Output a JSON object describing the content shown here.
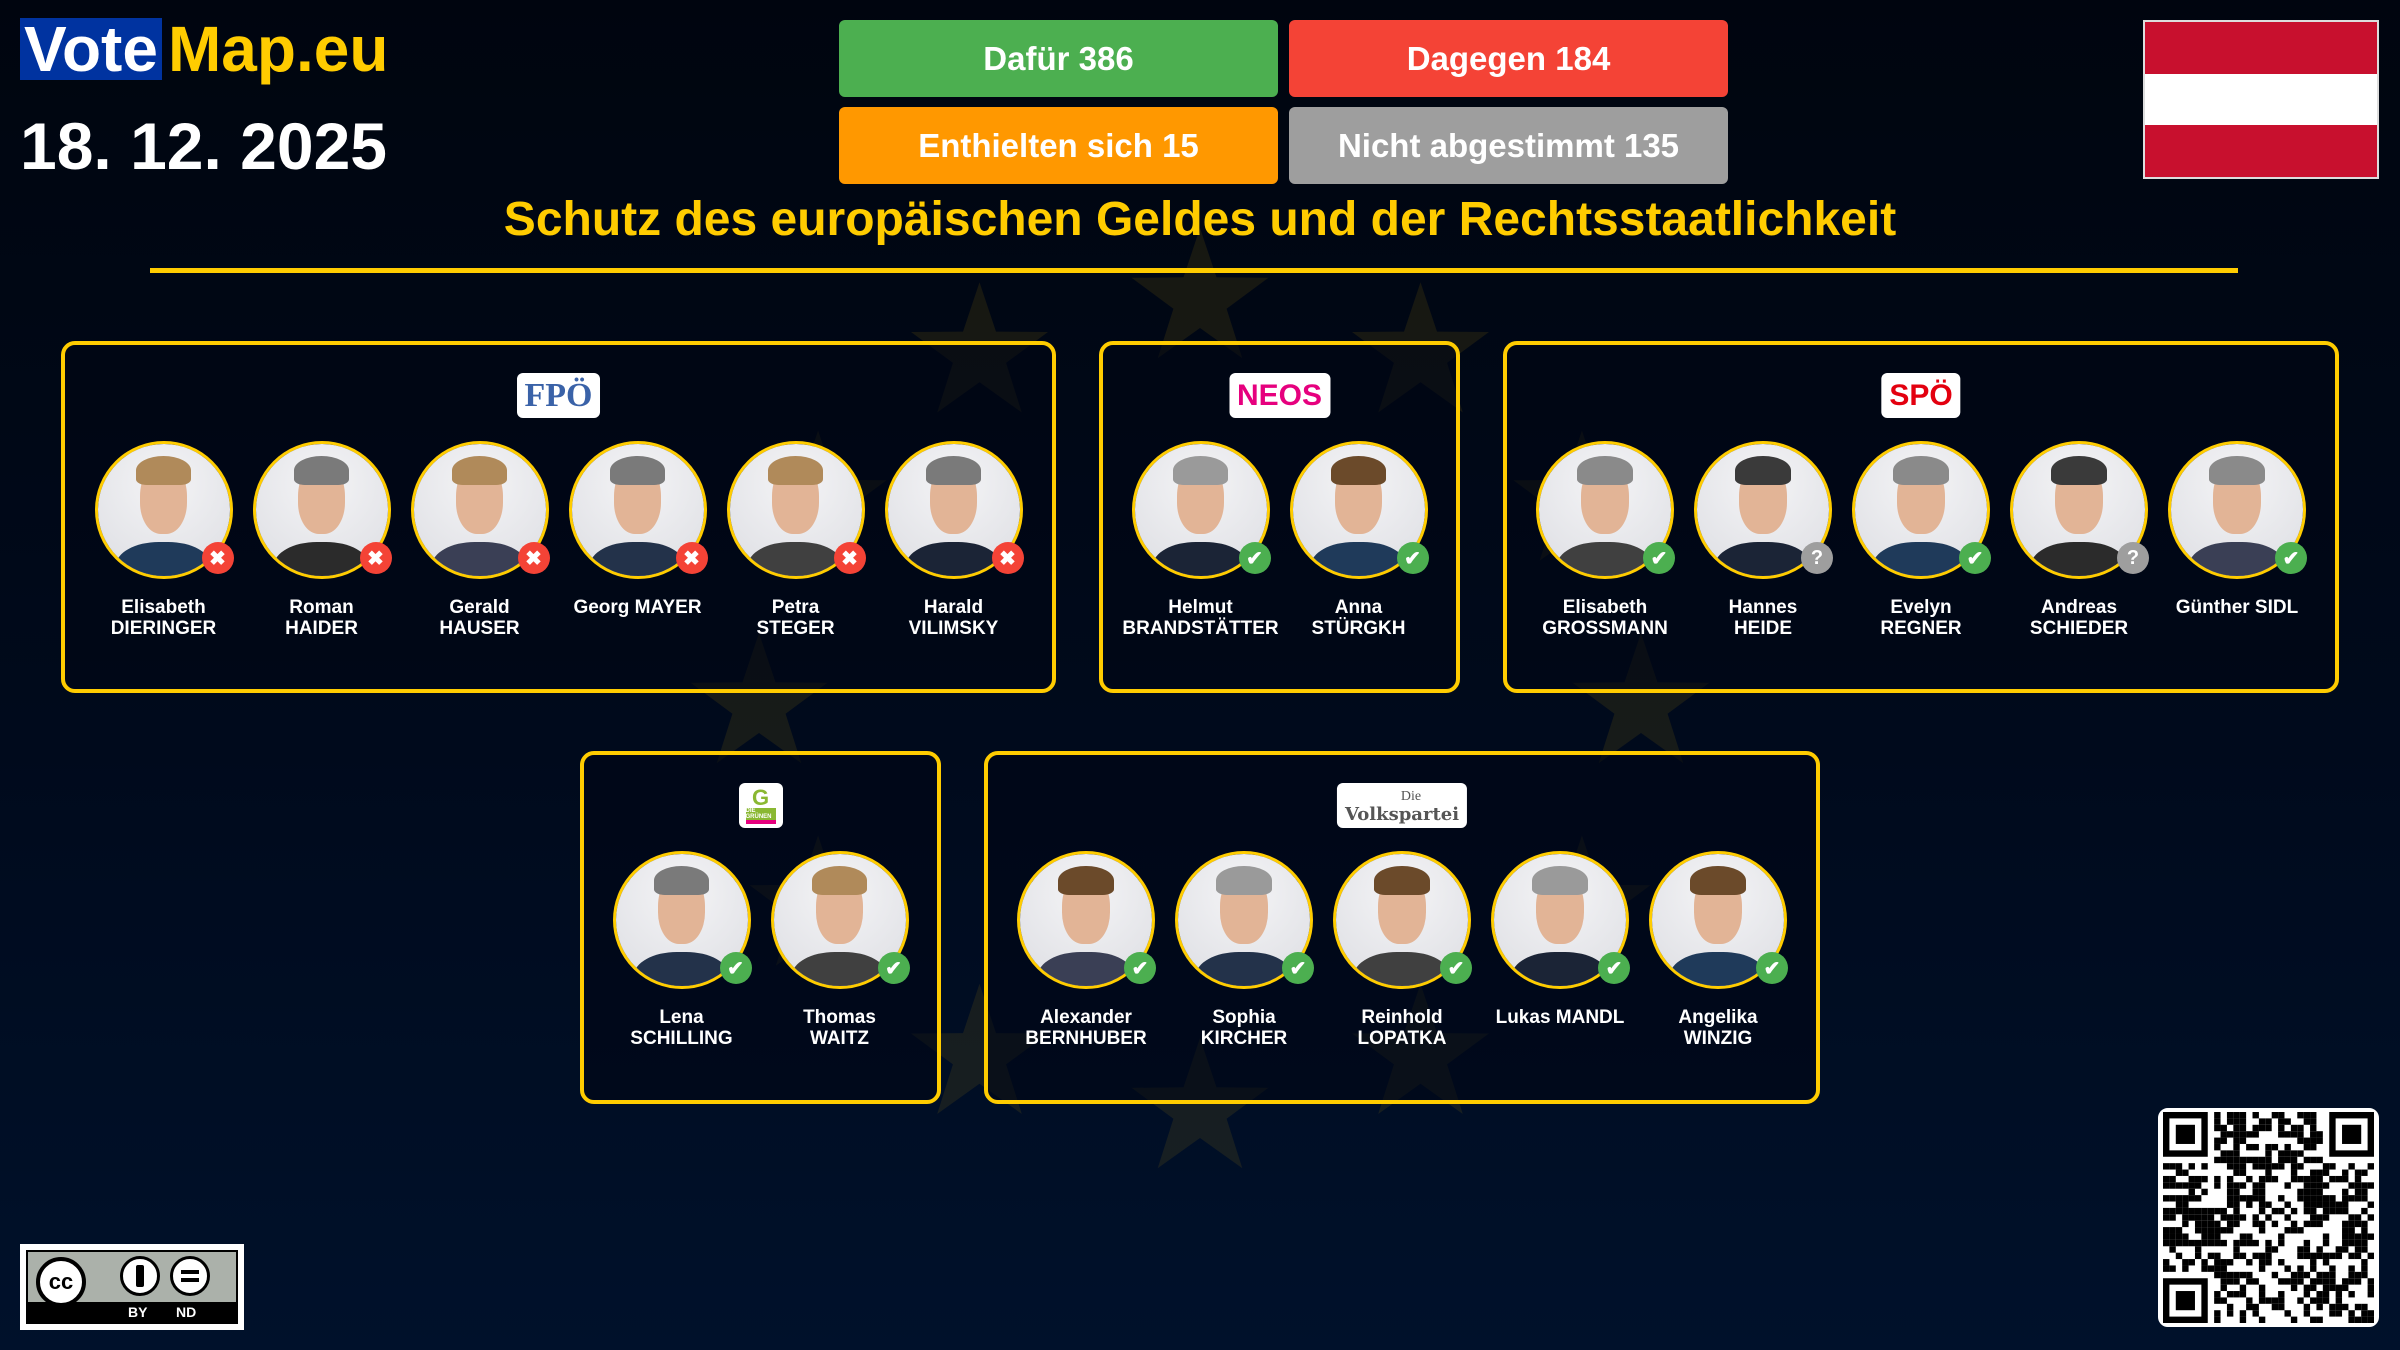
{
  "brand": {
    "vote": "Vote",
    "map": "Map.eu"
  },
  "date": "18. 12. 2025",
  "results": {
    "for": {
      "label": "Dafür 386",
      "color": "#4caf50"
    },
    "against": {
      "label": "Dagegen 184",
      "color": "#f44336"
    },
    "abstained": {
      "label": "Enthielten sich 15",
      "color": "#ff9800"
    },
    "not_voted": {
      "label": "Nicht abgestimmt 135",
      "color": "#9e9e9e"
    }
  },
  "country_flag": "Austria",
  "title": "Schutz des europäischen Geldes und der Rechtsstaatlichkeit",
  "accent_color": "#ffcc00",
  "status_icons": {
    "for": "check-icon",
    "against": "cross-icon",
    "absent": "question-icon"
  },
  "parties": [
    {
      "logo": "FPÖ",
      "logo_text": "FPÖ",
      "members": [
        {
          "first": "Elisabeth",
          "last": "DIERINGER",
          "vote": "against"
        },
        {
          "first": "Roman",
          "last": "HAIDER",
          "vote": "against"
        },
        {
          "first": "Gerald",
          "last": "HAUSER",
          "vote": "against"
        },
        {
          "first": "Georg MAYER",
          "last": "",
          "vote": "against"
        },
        {
          "first": "Petra",
          "last": "STEGER",
          "vote": "against"
        },
        {
          "first": "Harald",
          "last": "VILIMSKY",
          "vote": "against"
        }
      ]
    },
    {
      "logo": "NEOS",
      "logo_text": "NEOS",
      "members": [
        {
          "first": "Helmut",
          "last": "BRANDSTÄTTER",
          "vote": "for"
        },
        {
          "first": "Anna",
          "last": "STÜRGKH",
          "vote": "for"
        }
      ]
    },
    {
      "logo": "SPÖ",
      "logo_text": "SPÖ",
      "members": [
        {
          "first": "Elisabeth",
          "last": "GROSSMANN",
          "vote": "for"
        },
        {
          "first": "Hannes",
          "last": "HEIDE",
          "vote": "absent"
        },
        {
          "first": "Evelyn",
          "last": "REGNER",
          "vote": "for"
        },
        {
          "first": "Andreas",
          "last": "SCHIEDER",
          "vote": "absent"
        },
        {
          "first": "Günther SIDL",
          "last": "",
          "vote": "for"
        }
      ]
    },
    {
      "logo": "Die Grünen",
      "logo_text": "DIE GRÜNEN",
      "members": [
        {
          "first": "Lena",
          "last": "SCHILLING",
          "vote": "for"
        },
        {
          "first": "Thomas",
          "last": "WAITZ",
          "vote": "for"
        }
      ]
    },
    {
      "logo": "Die Volkspartei",
      "logo_text": "Volkspartei",
      "logo_small": "Die",
      "members": [
        {
          "first": "Alexander",
          "last": "BERNHUBER",
          "vote": "for"
        },
        {
          "first": "Sophia",
          "last": "KIRCHER",
          "vote": "for"
        },
        {
          "first": "Reinhold",
          "last": "LOPATKA",
          "vote": "for"
        },
        {
          "first": "Lukas MANDL",
          "last": "",
          "vote": "for"
        },
        {
          "first": "Angelika",
          "last": "WINZIG",
          "vote": "for"
        }
      ]
    }
  ],
  "license": {
    "by": "BY",
    "nd": "ND",
    "cc": "cc"
  }
}
